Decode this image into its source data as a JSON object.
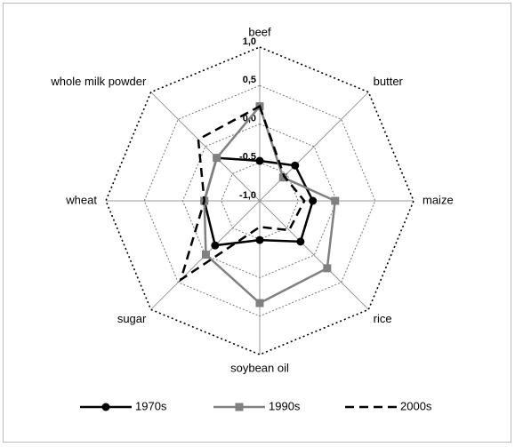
{
  "chart_data": {
    "type": "radar",
    "categories": [
      "beef",
      "butter",
      "maize",
      "rice",
      "soybean oil",
      "sugar",
      "wheat",
      "whole milk powder"
    ],
    "series": [
      {
        "name": "1970s",
        "color": "#000000",
        "marker": "circle",
        "dash": "solid",
        "values": [
          -0.48,
          -0.35,
          -0.31,
          -0.25,
          -0.49,
          -0.18,
          -0.28,
          -0.21
        ]
      },
      {
        "name": "1990s",
        "color": "#808080",
        "marker": "square",
        "dash": "solid",
        "values": [
          0.23,
          -0.57,
          -0.02,
          0.24,
          0.33,
          -0.01,
          -0.28,
          -0.21
        ]
      },
      {
        "name": "2000s",
        "color": "#000000",
        "marker": "none",
        "dash": "dashed",
        "values": [
          0.23,
          -0.55,
          -0.42,
          -0.46,
          -0.66,
          0.45,
          -0.28,
          0.13
        ]
      }
    ],
    "ylim": [
      -1,
      1
    ],
    "yticks": [
      {
        "value": -1,
        "label": "-1,0"
      },
      {
        "value": -0.5,
        "label": "-0,5"
      },
      {
        "value": 0,
        "label": "0,0"
      },
      {
        "value": 0.5,
        "label": "0,5"
      },
      {
        "value": 1,
        "label": "1,0"
      }
    ],
    "grid": true,
    "legend": "bottom"
  }
}
